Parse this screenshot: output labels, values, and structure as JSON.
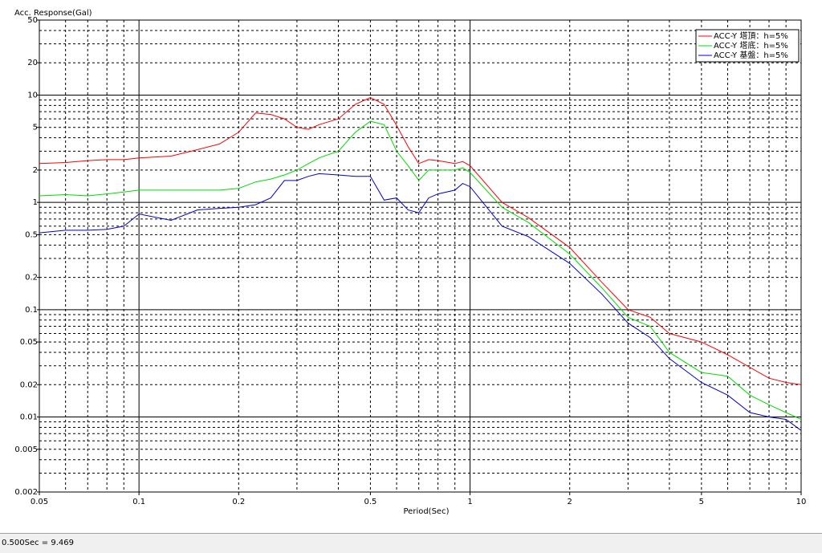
{
  "chart_data": {
    "type": "line",
    "ylabel": "Acc. Response(Gal)",
    "xlabel": "Period(Sec)",
    "log_x": true,
    "log_y": true,
    "grid": true,
    "legend": "upper right",
    "x": [
      0.05,
      0.06,
      0.07,
      0.08,
      0.09,
      0.1,
      0.125,
      0.15,
      0.175,
      0.2,
      0.225,
      0.25,
      0.275,
      0.3,
      0.325,
      0.35,
      0.4,
      0.45,
      0.5,
      0.55,
      0.6,
      0.65,
      0.7,
      0.75,
      0.8,
      0.9,
      0.95,
      1.0,
      1.25,
      1.5,
      2,
      2.5,
      3,
      3.5,
      4,
      5,
      6,
      7,
      8,
      9,
      10
    ],
    "series": [
      {
        "name": "ACC-Y 塔頂：h=5%",
        "color": "#ff0000",
        "values": [
          2.3,
          2.35,
          2.45,
          2.5,
          2.5,
          2.6,
          2.7,
          3.1,
          3.5,
          4.5,
          6.8,
          6.6,
          6.0,
          5.0,
          4.8,
          5.3,
          6.0,
          8.2,
          9.469,
          8.2,
          5.2,
          3.3,
          2.3,
          2.5,
          2.45,
          2.3,
          2.4,
          2.2,
          1.0,
          0.72,
          0.38,
          0.18,
          0.1,
          0.085,
          0.06,
          0.05,
          0.038,
          0.029,
          0.023,
          0.021,
          0.02
        ]
      },
      {
        "name": "ACC-Y 塔底：h=5%",
        "color": "#00dd00",
        "values": [
          1.15,
          1.18,
          1.15,
          1.2,
          1.25,
          1.3,
          1.3,
          1.3,
          1.3,
          1.35,
          1.55,
          1.65,
          1.8,
          2.0,
          2.3,
          2.6,
          3.0,
          4.5,
          5.7,
          5.3,
          3.0,
          2.2,
          1.6,
          2.0,
          2.0,
          2.0,
          2.1,
          1.9,
          0.9,
          0.65,
          0.33,
          0.16,
          0.085,
          0.07,
          0.04,
          0.026,
          0.024,
          0.016,
          0.013,
          0.011,
          0.0095
        ]
      },
      {
        "name": "ACC-Y 基盤：h=5%",
        "color": "#0000cc",
        "values": [
          0.52,
          0.55,
          0.55,
          0.56,
          0.6,
          0.78,
          0.68,
          0.85,
          0.88,
          0.9,
          0.95,
          1.1,
          1.6,
          1.6,
          1.75,
          1.85,
          1.8,
          1.75,
          1.75,
          1.05,
          1.1,
          0.85,
          0.8,
          1.1,
          1.2,
          1.3,
          1.5,
          1.4,
          0.6,
          0.48,
          0.27,
          0.14,
          0.075,
          0.055,
          0.035,
          0.021,
          0.016,
          0.011,
          0.01,
          0.0095,
          0.0075
        ]
      }
    ],
    "xlim": [
      0.05,
      10
    ],
    "ylim": [
      0.002,
      50
    ],
    "xticks": [
      0.05,
      0.1,
      0.2,
      0.5,
      1,
      2,
      5,
      10
    ],
    "yticks": [
      50,
      20,
      10,
      5,
      2,
      1,
      0.5,
      0.2,
      0.1,
      0.05,
      0.02,
      0.01,
      0.005,
      0.002
    ],
    "xgrid": [
      0.06,
      0.07,
      0.08,
      0.09,
      0.1,
      0.2,
      0.3,
      0.4,
      0.5,
      0.6,
      0.7,
      0.8,
      0.9,
      1,
      2,
      3,
      4,
      5,
      6,
      7,
      8,
      9
    ],
    "ygrid": [
      0.003,
      0.004,
      0.005,
      0.006,
      0.007,
      0.008,
      0.009,
      0.01,
      0.02,
      0.03,
      0.04,
      0.05,
      0.06,
      0.07,
      0.08,
      0.09,
      0.1,
      0.2,
      0.3,
      0.4,
      0.5,
      0.6,
      0.7,
      0.8,
      0.9,
      1,
      2,
      3,
      4,
      5,
      6,
      7,
      8,
      9,
      10,
      20,
      30,
      40
    ]
  },
  "status": "0.500Sec = 9.469"
}
